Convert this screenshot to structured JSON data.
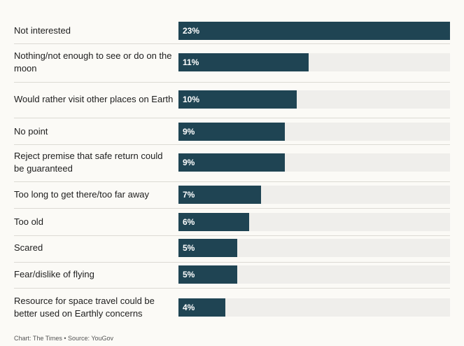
{
  "chart_data": {
    "type": "bar",
    "orientation": "horizontal",
    "categories": [
      "Not interested",
      "Nothing/not enough to see or do on the moon",
      "Would rather visit other places on Earth",
      "No point",
      "Reject premise that safe return could be guaranteed",
      "Too long to get there/too far away",
      "Too old",
      "Scared",
      "Fear/dislike of flying",
      "Resource for space travel could be better used on Earthly concerns"
    ],
    "values": [
      23,
      11,
      10,
      9,
      9,
      7,
      6,
      5,
      5,
      4
    ],
    "value_labels": [
      "23%",
      "11%",
      "10%",
      "9%",
      "9%",
      "7%",
      "6%",
      "5%",
      "5%",
      "4%"
    ],
    "xlim": [
      0,
      23
    ],
    "unit": "%",
    "title": "",
    "xlabel": "",
    "ylabel": ""
  },
  "footer": "Chart: The Times • Source: YouGov",
  "colors": {
    "bar": "#1f4453",
    "track": "#efeeeb",
    "background": "#fbfaf6"
  }
}
